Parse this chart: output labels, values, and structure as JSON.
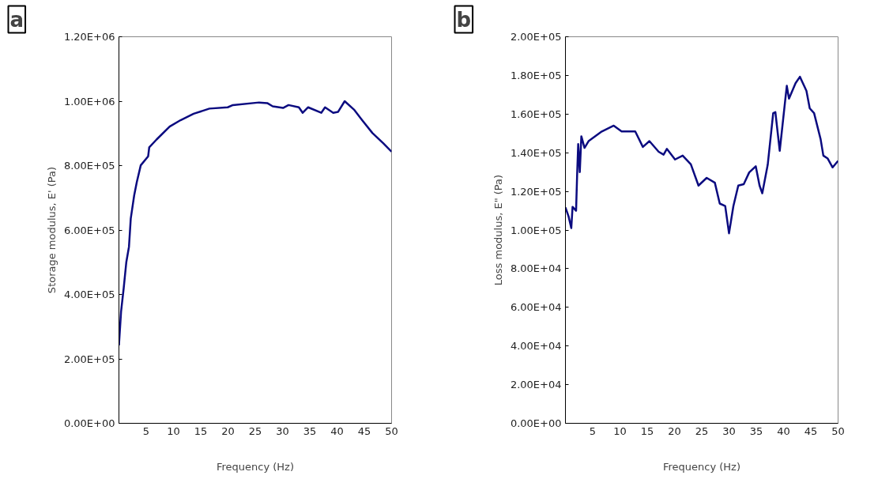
{
  "chart_data": [
    {
      "type": "line",
      "xlabel": "Frequency (Hz)",
      "ylabel": "Storage modulus, E' (Pa)",
      "annotations": [
        "a"
      ],
      "xlim": [
        0,
        50
      ],
      "xticks": [
        5,
        10,
        15,
        20,
        25,
        30,
        35,
        40,
        45,
        50
      ],
      "ylim": [
        0,
        1200000
      ],
      "yticks": [
        {
          "value": 0,
          "label": "0.00E+00"
        },
        {
          "value": 200000,
          "label": "2.00E+05"
        },
        {
          "value": 400000,
          "label": "4.00E+05"
        },
        {
          "value": 600000,
          "label": "6.00E+05"
        },
        {
          "value": 800000,
          "label": "8.00E+05"
        },
        {
          "value": 1000000,
          "label": "1.00E+06"
        },
        {
          "value": 1200000,
          "label": "1.20E+06"
        }
      ],
      "grid": false,
      "marker": "none",
      "series": [
        {
          "color": "#0b0b80",
          "x": [
            0,
            0.39,
            0.87,
            1.35,
            1.84,
            2.17,
            2.8,
            3.28,
            4.0,
            5.36,
            5.56,
            6.9,
            9.3,
            11.3,
            13.7,
            16.6,
            19.95,
            20.9,
            25.7,
            27.2,
            28.2,
            30.1,
            31.1,
            33.0,
            33.7,
            34.7,
            37.1,
            37.8,
            39.3,
            40.2,
            41.4,
            43.1,
            44.6,
            46.5,
            48.5,
            50
          ],
          "values": [
            242000,
            347000,
            419000,
            500000,
            548000,
            636000,
            708000,
            749000,
            801000,
            829000,
            857000,
            881000,
            921000,
            941000,
            961000,
            977000,
            981000,
            988000,
            996000,
            994000,
            984000,
            979000,
            988000,
            981000,
            964000,
            981000,
            964000,
            981000,
            964000,
            967000,
            1000000,
            974000,
            941000,
            901000,
            869000,
            843000
          ]
        }
      ]
    },
    {
      "type": "line",
      "xlabel": "Frequency (Hz)",
      "ylabel": "Loss modulus, E\" (Pa)",
      "annotations": [
        "b"
      ],
      "xlim": [
        0,
        50
      ],
      "xticks": [
        5,
        10,
        15,
        20,
        25,
        30,
        35,
        40,
        45,
        50
      ],
      "ylim": [
        0,
        200000
      ],
      "yticks": [
        {
          "value": 0,
          "label": "0.00E+00"
        },
        {
          "value": 20000,
          "label": "2.00E+04"
        },
        {
          "value": 40000,
          "label": "4.00E+04"
        },
        {
          "value": 60000,
          "label": "6.00E+04"
        },
        {
          "value": 80000,
          "label": "8.00E+04"
        },
        {
          "value": 100000,
          "label": "1.00E+05"
        },
        {
          "value": 120000,
          "label": "1.20E+05"
        },
        {
          "value": 140000,
          "label": "1.40E+05"
        },
        {
          "value": 160000,
          "label": "1.60E+05"
        },
        {
          "value": 180000,
          "label": "1.80E+05"
        },
        {
          "value": 200000,
          "label": "2.00E+05"
        }
      ],
      "grid": false,
      "marker": "none",
      "series": [
        {
          "color": "#0b0b80",
          "x": [
            0,
            0.58,
            1.07,
            1.31,
            1.95,
            2.14,
            2.34,
            2.63,
            2.92,
            3.5,
            4.24,
            6.67,
            8.86,
            10.3,
            12.8,
            14.2,
            15.4,
            17.1,
            18.0,
            18.6,
            20.1,
            21.5,
            23.0,
            24.4,
            25.9,
            27.4,
            28.3,
            29.3,
            30.0,
            30.8,
            31.7,
            32.7,
            33.7,
            34.9,
            35.6,
            36.1,
            37.1,
            38.1,
            38.5,
            39.3,
            40.3,
            40.6,
            41.0,
            42.2,
            43.0,
            44.2,
            44.8,
            45.6,
            46.8,
            47.3,
            48.1,
            49.0,
            50
          ],
          "values": [
            111700,
            107000,
            101000,
            112000,
            110000,
            128000,
            144500,
            130000,
            148500,
            142500,
            146000,
            151000,
            154000,
            151000,
            151000,
            143000,
            146000,
            140500,
            139000,
            142000,
            136500,
            138500,
            134000,
            123000,
            127000,
            124500,
            113700,
            112400,
            98300,
            112400,
            123000,
            123700,
            129800,
            133000,
            123000,
            119000,
            133800,
            160500,
            161000,
            141000,
            167000,
            174600,
            168000,
            176000,
            179300,
            172000,
            163000,
            160500,
            147000,
            138500,
            137000,
            132400,
            135800
          ]
        }
      ]
    }
  ]
}
